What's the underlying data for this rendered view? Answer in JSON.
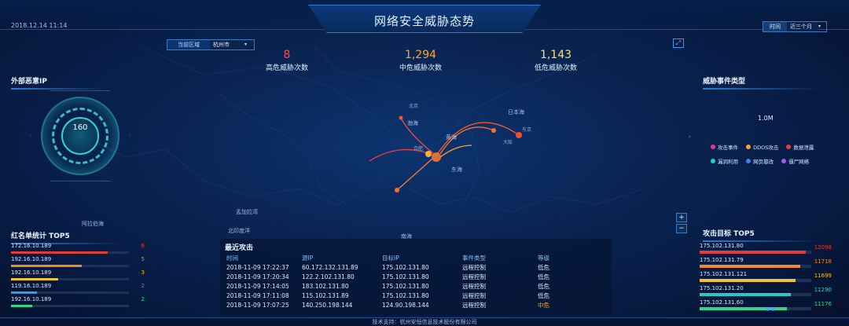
{
  "header": {
    "title": "网络安全威胁态势",
    "datetime": "2018.12.14  11:14",
    "time_filter": {
      "label": "时间",
      "value": "近三个月"
    }
  },
  "region_select": {
    "label": "当前区域",
    "value": "杭州市"
  },
  "stats": [
    {
      "value": "8",
      "label": "高危威胁次数",
      "color": "#ff4b3a"
    },
    {
      "value": "1,294",
      "label": "中危威胁次数",
      "color": "#ffa531"
    },
    {
      "value": "1,143",
      "label": "低危威胁次数",
      "color": "#ffe070"
    }
  ],
  "external_ip": {
    "title": "外部恶意IP",
    "count": "160"
  },
  "threat_types": {
    "title": "威胁事件类型",
    "center_value": "1.0M",
    "legend": [
      {
        "label": "攻击事件",
        "color": "#e23b8a"
      },
      {
        "label": "DDOS攻击",
        "color": "#f3a52a"
      },
      {
        "label": "数据泄露",
        "color": "#ee3b3b"
      },
      {
        "label": "漏洞利用",
        "color": "#29c7c9"
      },
      {
        "label": "网页篡改",
        "color": "#3f7fe8"
      },
      {
        "label": "僵尸网络",
        "color": "#a35ef0"
      }
    ]
  },
  "redlist": {
    "title": "红名单统计 TOP5",
    "items": [
      {
        "ip": "172.16.10.189",
        "count": "6",
        "pct": 0.82,
        "color": "#e43b3b"
      },
      {
        "ip": "192.16.10.189",
        "count": "5",
        "pct": 0.6,
        "color": "#f08a2c"
      },
      {
        "ip": "192.16.10.189",
        "count": "3",
        "pct": 0.4,
        "color": "#f2c230"
      },
      {
        "ip": "119.16.10.189",
        "count": "2",
        "pct": 0.22,
        "color": "#2b9fe8"
      },
      {
        "ip": "192.16.10.189",
        "count": "2",
        "pct": 0.18,
        "color": "#2fd68f"
      }
    ]
  },
  "recent": {
    "title": "最近攻击",
    "headers": [
      "时间",
      "源IP",
      "目标IP",
      "事件类型",
      "等级"
    ],
    "rows": [
      {
        "time": "2018-11-09 17:22:37",
        "src": "60.172.132.131.89",
        "dst": "175.102.131.80",
        "type": "远程控制",
        "level": "低危",
        "level_color": "#d9ecff"
      },
      {
        "time": "2018-11-09 17:20:34",
        "src": "122.2.102.131.80",
        "dst": "175.102.131.80",
        "type": "远程控制",
        "level": "低危",
        "level_color": "#d9ecff"
      },
      {
        "time": "2018-11-09 17:14:05",
        "src": "183.102.131.80",
        "dst": "175.102.131.80",
        "type": "远程控制",
        "level": "低危",
        "level_color": "#d9ecff"
      },
      {
        "time": "2018-11-09 17:11:08",
        "src": "115.102.131.89",
        "dst": "175.102.131.80",
        "type": "远程控制",
        "level": "低危",
        "level_color": "#d9ecff"
      },
      {
        "time": "2018-11-09 17:07:25",
        "src": "140.250.198.144",
        "dst": "124.90.198.144",
        "type": "远程控制",
        "level": "中危",
        "level_color": "#ffa531"
      }
    ]
  },
  "attack_targets": {
    "title": "攻击目标 TOP5",
    "items": [
      {
        "ip": "175.102.131.80",
        "count": "12098",
        "pct": 0.95,
        "color": "#e43b3b"
      },
      {
        "ip": "175.102.131.79",
        "count": "11718",
        "pct": 0.9,
        "color": "#f08a2c"
      },
      {
        "ip": "175.102.131.121",
        "count": "11699",
        "pct": 0.86,
        "color": "#f2c230"
      },
      {
        "ip": "175.102.131.20",
        "count": "11290",
        "pct": 0.82,
        "color": "#29c7c9"
      },
      {
        "ip": "175.102.131.60",
        "count": "11176",
        "pct": 0.78,
        "color": "#2fd68f"
      }
    ]
  },
  "map_labels": {
    "seas": [
      "日本海",
      "渤海",
      "黄海",
      "东海",
      "南海",
      "阿拉伯海",
      "北印度洋",
      "孟加拉湾"
    ],
    "places": [
      "北京",
      "合肥",
      "东京",
      "大阪"
    ]
  },
  "zoom": {
    "plus": "+",
    "minus": "−"
  },
  "footer": "技术支持：杭州安恒信息技术股份有限公司"
}
